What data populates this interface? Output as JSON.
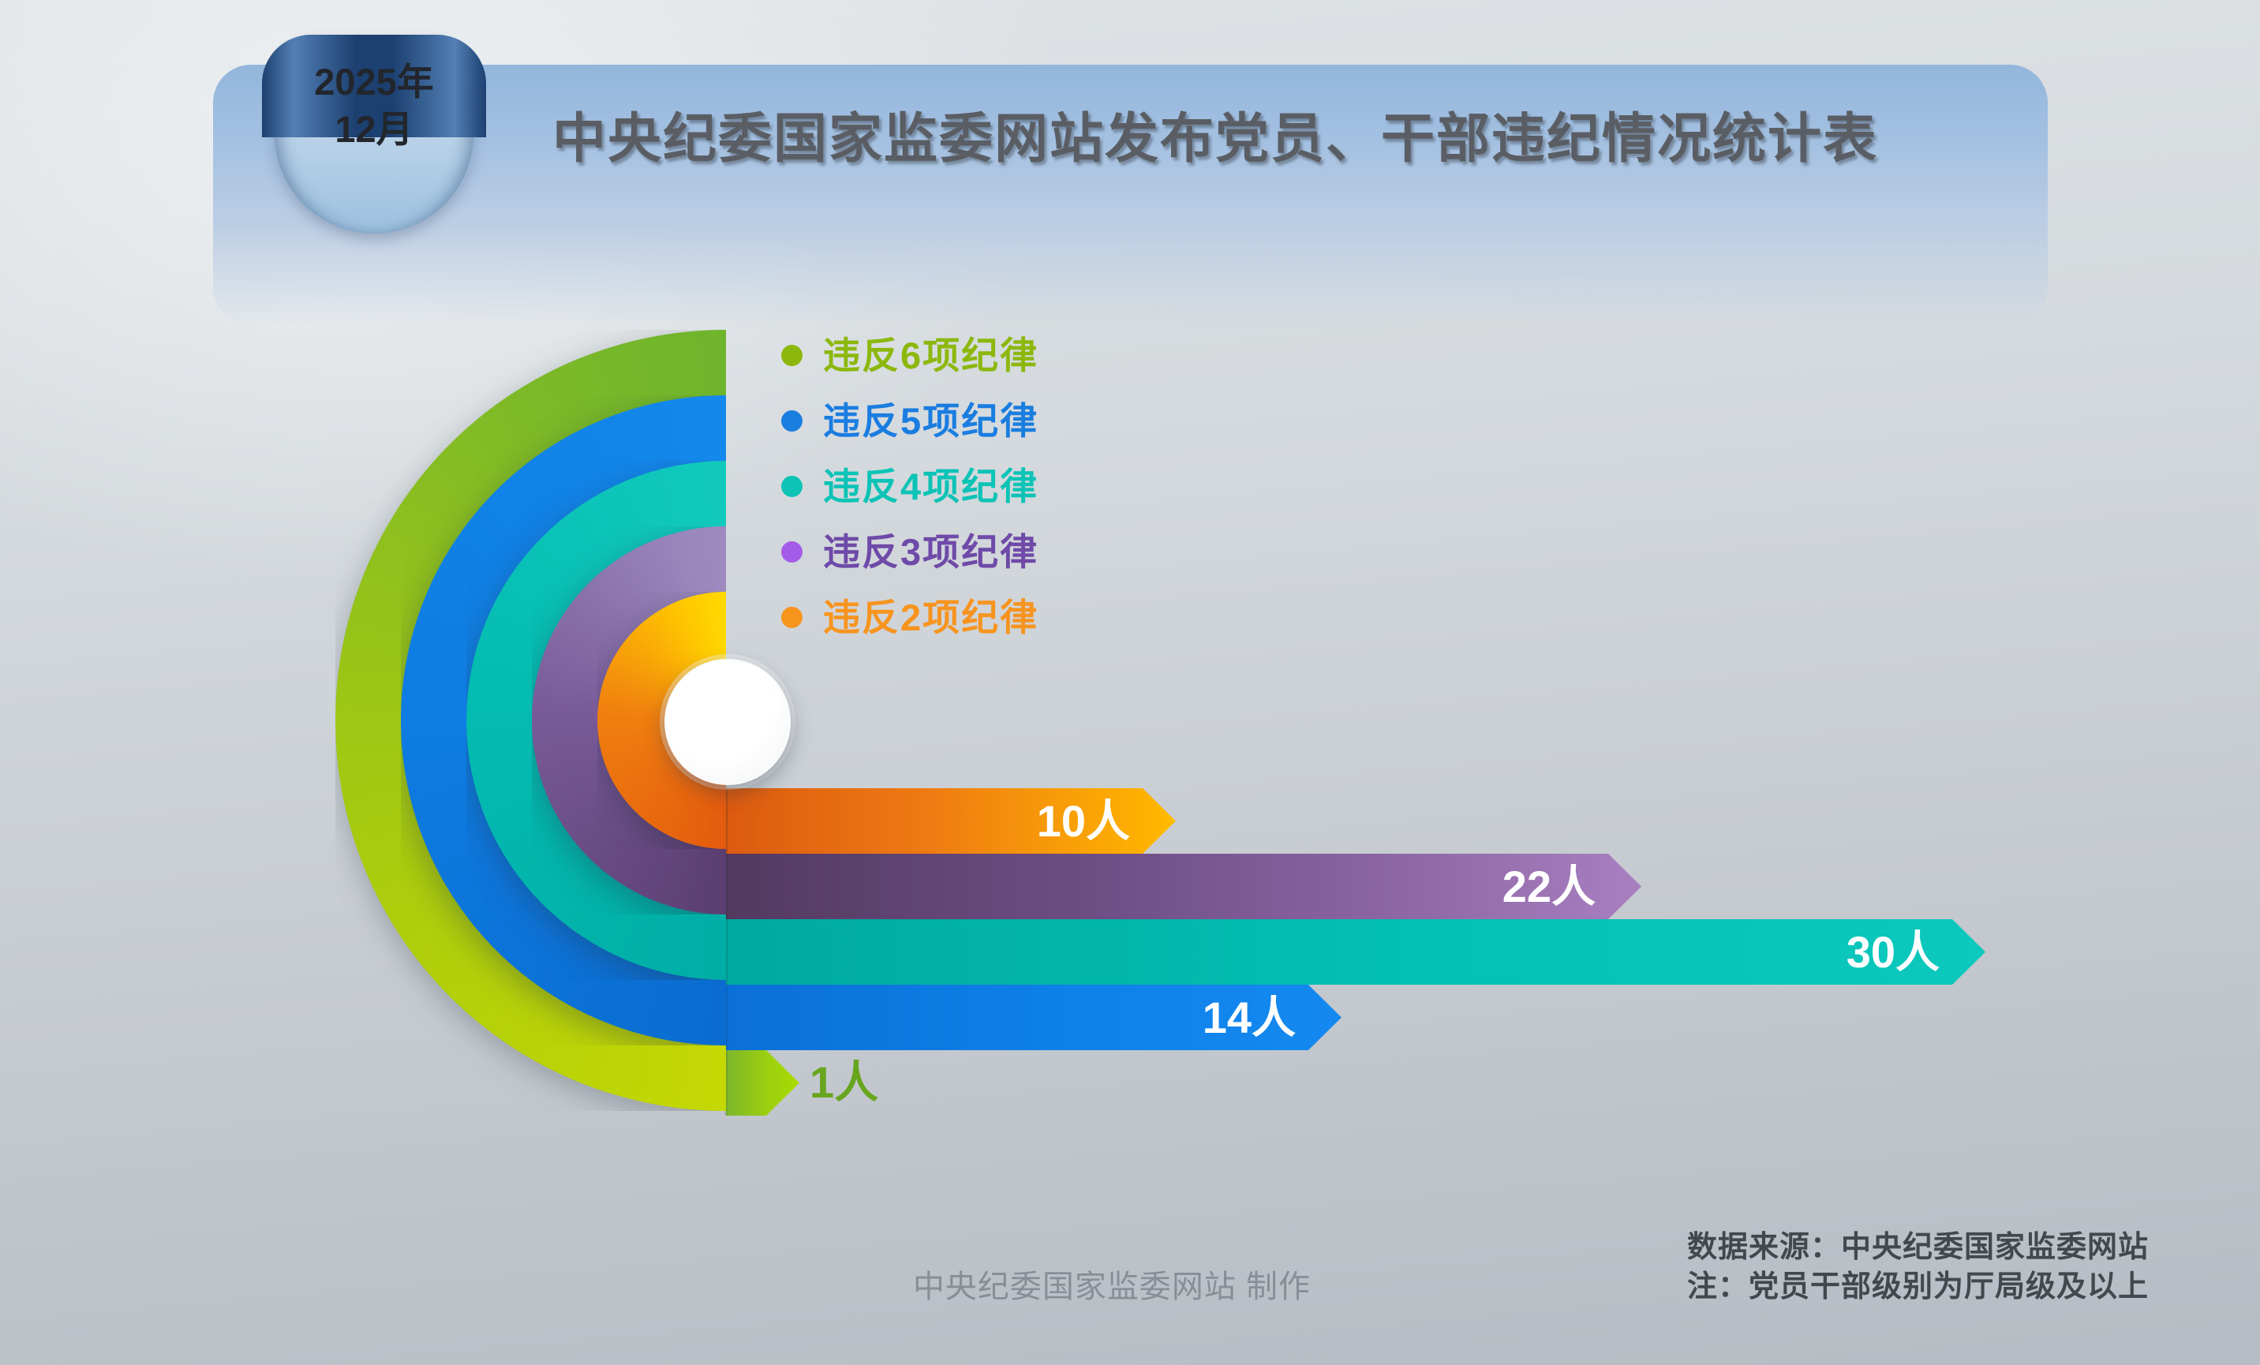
{
  "header": {
    "period_line1": "2025年",
    "period_line2": "12月",
    "title": "中央纪委国家监委网站发布党员、干部违纪情况统计表"
  },
  "legend": [
    {
      "label": "违反6项纪律",
      "color": "#8cb80e",
      "bullet_color": "#8cb80e"
    },
    {
      "label": "违反5项纪律",
      "color": "#1a7de0",
      "bullet_color": "#1a7de0"
    },
    {
      "label": "违反4项纪律",
      "color": "#0cc3b6",
      "bullet_color": "#0cc3b6"
    },
    {
      "label": "违反3项纪律",
      "color": "#6f4aa8",
      "bullet_color": "#a45ce8"
    },
    {
      "label": "违反2项纪律",
      "color": "#f7941e",
      "bullet_color": "#f7941e"
    }
  ],
  "chart_data": {
    "type": "bar",
    "orientation": "horizontal-radial",
    "title": "中央纪委国家监委网站发布党员、干部违纪情况统计表",
    "period": "2025年12月",
    "unit": "人",
    "categories": [
      "违反2项纪律",
      "违反3项纪律",
      "违反4项纪律",
      "违反5项纪律",
      "违反6项纪律"
    ],
    "values": [
      10,
      22,
      30,
      14,
      1
    ],
    "items": [
      {
        "category": "违反2项纪律",
        "value": 10,
        "value_label": "10人",
        "color": "#f1820f"
      },
      {
        "category": "违反3项纪律",
        "value": 22,
        "value_label": "22人",
        "color": "#8a63a2"
      },
      {
        "category": "违反4项纪律",
        "value": 30,
        "value_label": "30人",
        "color": "#07c1b6"
      },
      {
        "category": "违反5项纪律",
        "value": 14,
        "value_label": "14人",
        "color": "#0f82ea"
      },
      {
        "category": "违反6项纪律",
        "value": 1,
        "value_label": "1人",
        "color": "#a0d400"
      }
    ],
    "legend_position": "top-right",
    "grid": false
  },
  "footer": {
    "credit": "中央纪委国家监委网站 制作",
    "source": "数据来源：中央纪委国家监委网站",
    "note": "注：党员干部级别为厅局级及以上"
  }
}
